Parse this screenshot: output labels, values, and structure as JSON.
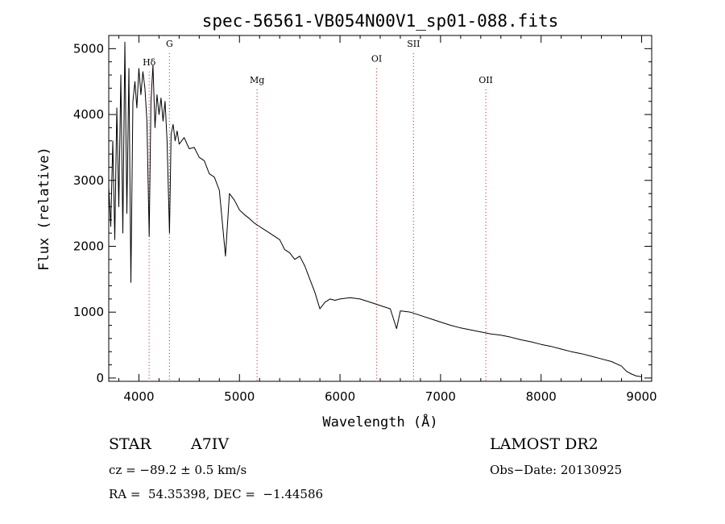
{
  "chart_data": {
    "type": "line",
    "title": "spec-56561-VB054N00V1_sp01-088.fits",
    "xlabel": "Wavelength (Å)",
    "ylabel": "Flux (relative)",
    "xlim": [
      3700,
      9100
    ],
    "ylim": [
      -50,
      5200
    ],
    "x_ticks": [
      4000,
      5000,
      6000,
      7000,
      8000,
      9000
    ],
    "y_ticks": [
      0,
      1000,
      2000,
      3000,
      4000,
      5000
    ],
    "grid": false,
    "line_color": "#000000",
    "marker_color": "#cc3333",
    "series": [
      {
        "x": [
          3700,
          3720,
          3740,
          3760,
          3780,
          3800,
          3820,
          3840,
          3860,
          3880,
          3900,
          3920,
          3940,
          3960,
          3980,
          4000,
          4020,
          4040,
          4060,
          4080,
          4102,
          4120,
          4140,
          4160,
          4180,
          4200,
          4220,
          4240,
          4260,
          4280,
          4304,
          4320,
          4340,
          4360,
          4380,
          4400,
          4450,
          4500,
          4550,
          4600,
          4650,
          4700,
          4750,
          4800,
          4861,
          4900,
          4950,
          5000,
          5050,
          5100,
          5150,
          5200,
          5250,
          5300,
          5350,
          5400,
          5450,
          5500,
          5550,
          5600,
          5650,
          5700,
          5750,
          5800,
          5850,
          5900,
          5950,
          6000,
          6100,
          6200,
          6300,
          6400,
          6500,
          6563,
          6600,
          6700,
          6800,
          6900,
          7000,
          7100,
          7200,
          7300,
          7400,
          7500,
          7600,
          7700,
          7800,
          7900,
          8000,
          8100,
          8200,
          8300,
          8400,
          8500,
          8600,
          8700,
          8800,
          8850,
          8900,
          8950,
          9000
        ],
        "values": [
          2900,
          2300,
          3600,
          2100,
          4100,
          2600,
          4600,
          2200,
          5100,
          2500,
          4700,
          1450,
          4200,
          4500,
          4100,
          4700,
          4300,
          4650,
          4400,
          3900,
          2150,
          4200,
          4750,
          3800,
          4300,
          4000,
          4250,
          3900,
          4200,
          3600,
          2200,
          3700,
          3850,
          3600,
          3750,
          3550,
          3650,
          3480,
          3500,
          3350,
          3300,
          3100,
          3050,
          2850,
          1850,
          2800,
          2700,
          2550,
          2480,
          2420,
          2350,
          2300,
          2250,
          2200,
          2150,
          2100,
          1950,
          1900,
          1800,
          1850,
          1700,
          1500,
          1300,
          1050,
          1150,
          1200,
          1180,
          1200,
          1220,
          1200,
          1150,
          1100,
          1050,
          750,
          1020,
          1000,
          950,
          900,
          850,
          800,
          760,
          730,
          700,
          670,
          650,
          620,
          580,
          550,
          510,
          480,
          440,
          400,
          370,
          330,
          290,
          250,
          180,
          100,
          60,
          30,
          20
        ]
      }
    ],
    "lines": [
      {
        "label": "Hδ",
        "x": 4102,
        "label_y": 4750
      },
      {
        "label": "G",
        "x": 4304,
        "label_y": 5030
      },
      {
        "label": "Mg",
        "x": 5175,
        "label_y": 4480
      },
      {
        "label": "OI",
        "x": 6364,
        "label_y": 4800
      },
      {
        "label": "SII",
        "x": 6731,
        "label_y": 5030
      },
      {
        "label": "OII",
        "x": 7450,
        "label_y": 4480
      }
    ]
  },
  "info": {
    "object_class": "STAR",
    "subclass": "A7IV",
    "redshift": "cz = −89.2 ± 0.5 km/s",
    "coords": "RA =  54.35398, DEC =  −1.44586",
    "survey": "LAMOST DR2",
    "obs_date": "Obs−Date: 20130925"
  }
}
